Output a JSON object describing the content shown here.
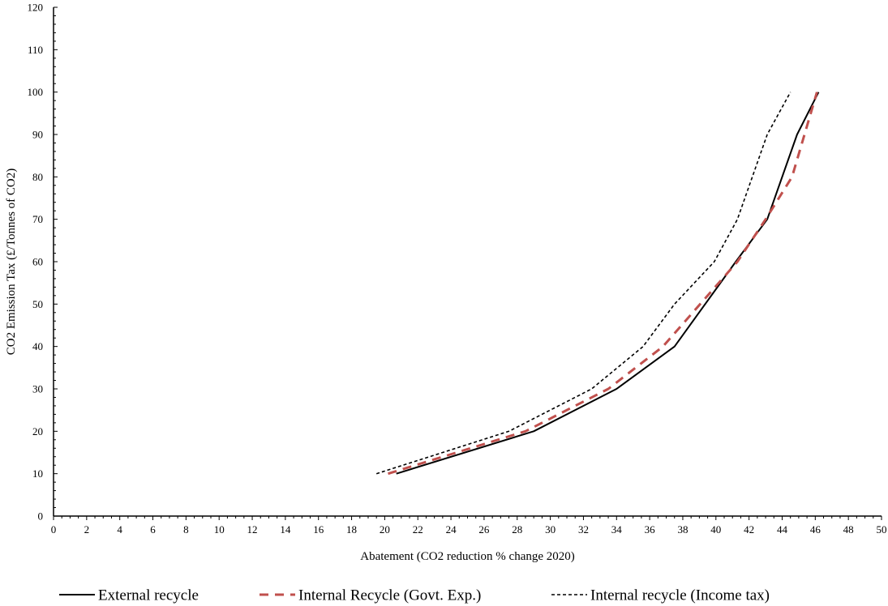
{
  "chart_data": {
    "type": "line",
    "xlabel": "Abatement (CO2 reduction % change 2020)",
    "ylabel": "CO2 Emission Tax (£/Tonnes of CO2)",
    "xlim": [
      0,
      50
    ],
    "ylim": [
      0,
      120
    ],
    "x_ticks": [
      "0",
      "2",
      "4",
      "6",
      "8",
      "10",
      "12",
      "14",
      "16",
      "18",
      "20",
      "22",
      "24",
      "26",
      "28",
      "30",
      "32",
      "34",
      "36",
      "38",
      "40",
      "42",
      "44",
      "46",
      "48",
      "50"
    ],
    "y_ticks": [
      "0",
      "10",
      "20",
      "30",
      "40",
      "50",
      "60",
      "70",
      "80",
      "90",
      "100",
      "110",
      "120"
    ],
    "grid": false,
    "legend_position": "bottom",
    "series": [
      {
        "name": "External recycle",
        "color": "#000000",
        "style": "solid",
        "x": [
          20.7,
          29.0,
          34.0,
          37.5,
          41.2,
          43.1,
          44.9,
          46.2
        ],
        "y": [
          10,
          20,
          30,
          40,
          60,
          70,
          90,
          100
        ]
      },
      {
        "name": "Internal Recycle (Govt. Exp.)",
        "color": "#c0504d",
        "style": "dashed",
        "x": [
          20.2,
          28.5,
          33.5,
          36.8,
          41.3,
          43.0,
          44.6,
          46.1
        ],
        "y": [
          10,
          20,
          30,
          40,
          60,
          70,
          80,
          100
        ]
      },
      {
        "name": "Internal recycle (Income tax)",
        "color": "#000000",
        "style": "dotted",
        "x": [
          19.5,
          27.5,
          32.5,
          35.6,
          37.5,
          39.9,
          41.3,
          43.1,
          44.5
        ],
        "y": [
          10,
          20,
          30,
          40,
          50,
          60,
          70,
          90,
          100
        ]
      }
    ]
  }
}
